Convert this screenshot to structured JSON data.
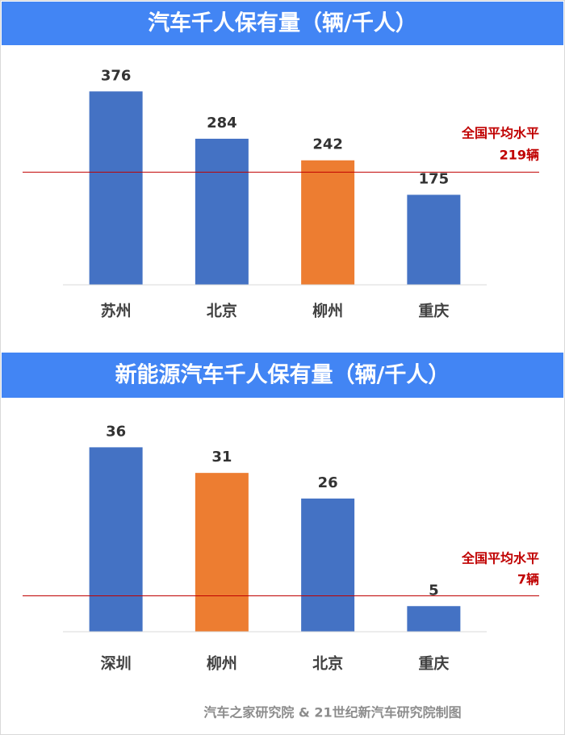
{
  "chart_data": [
    {
      "type": "bar",
      "title": "汽车千人保有量（辆/千人）",
      "categories": [
        "苏州",
        "北京",
        "柳州",
        "重庆"
      ],
      "values": [
        376,
        284,
        242,
        175
      ],
      "colors": [
        "#4472c4",
        "#4472c4",
        "#ed7d31",
        "#4472c4"
      ],
      "ylim": [
        0,
        400
      ],
      "reference_line": {
        "value": 219,
        "label": [
          "全国平均水平",
          "219辆"
        ],
        "color": "#c00000"
      }
    },
    {
      "type": "bar",
      "title": "新能源汽车千人保有量（辆/千人）",
      "categories": [
        "深圳",
        "柳州",
        "北京",
        "重庆"
      ],
      "values": [
        36,
        31,
        26,
        5
      ],
      "colors": [
        "#4472c4",
        "#ed7d31",
        "#4472c4",
        "#4472c4"
      ],
      "ylim": [
        0,
        40
      ],
      "reference_line": {
        "value": 7,
        "label": [
          "全国平均水平",
          "7辆"
        ],
        "color": "#c00000"
      }
    }
  ],
  "footer": "汽车之家研究院 & 21世纪新汽车研究院制图"
}
